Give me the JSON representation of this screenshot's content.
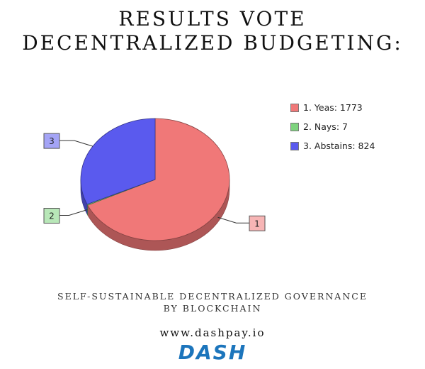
{
  "header": {
    "title_line1": "RESULTS VOTE",
    "title_line2": "DECENTRALIZED BUDGETING:"
  },
  "chart_data": {
    "type": "pie",
    "style": "3d",
    "series": [
      {
        "label": "1",
        "legend": "1. Yeas: 1773",
        "value": 1773,
        "color": "#f07878"
      },
      {
        "label": "2",
        "legend": "2. Nays: 7",
        "value": 7,
        "color": "#7ed37e"
      },
      {
        "label": "3",
        "legend": "3. Abstains: 824",
        "value": 824,
        "color": "#5a5aee"
      }
    ],
    "legend_position": "right"
  },
  "footer": {
    "line1": "SELF-SUSTAINABLE DECENTRALIZED GOVERNANCE",
    "line2": "BY BLOCKCHAIN",
    "url": "www.dashpay.io",
    "logo_text": "DASH"
  },
  "colors": {
    "logo": "#1c75bc"
  }
}
